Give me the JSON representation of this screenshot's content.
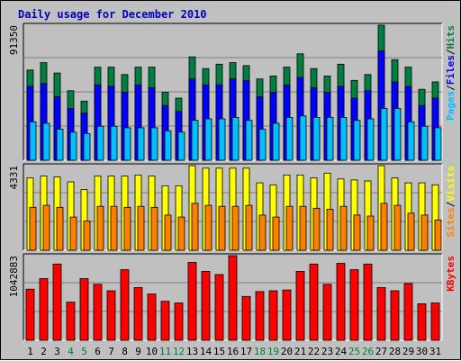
{
  "title": "Daily usage for December 2010",
  "colors": {
    "hits": "#008040",
    "files": "#0000ff",
    "pages": "#00c0ff",
    "visits": "#ffff00",
    "sites": "#ff8000",
    "kbytes": "#ff0000",
    "title": "#0000c0",
    "weekday": "#000000",
    "weekend": "#008040",
    "panel_bg": "#c0c0c0",
    "grid": "#808080"
  },
  "legend": {
    "top": [
      {
        "text": "Pages",
        "color": "#00c0ff"
      },
      {
        "text": "/",
        "color": "#000000"
      },
      {
        "text": "Files",
        "color": "#0000ff"
      },
      {
        "text": "/",
        "color": "#000000"
      },
      {
        "text": "Hits",
        "color": "#008040"
      }
    ],
    "middle": [
      {
        "text": "Sites",
        "color": "#ff8000"
      },
      {
        "text": "/",
        "color": "#000000"
      },
      {
        "text": "Visits",
        "color": "#ffff00"
      }
    ],
    "bottom": [
      {
        "text": "KBytes",
        "color": "#ff0000"
      }
    ]
  },
  "chart_data": [
    {
      "type": "bar",
      "panel": "top",
      "y_max_label": "91350",
      "ylim": [
        0,
        91350
      ],
      "categories": [
        "1",
        "2",
        "3",
        "4",
        "5",
        "6",
        "7",
        "8",
        "9",
        "10",
        "11",
        "12",
        "13",
        "14",
        "15",
        "16",
        "17",
        "18",
        "19",
        "20",
        "21",
        "22",
        "23",
        "24",
        "25",
        "26",
        "27",
        "28",
        "29",
        "30",
        "31"
      ],
      "weekend_days": [
        "4",
        "5",
        "11",
        "12",
        "18",
        "19",
        "25",
        "26"
      ],
      "series": [
        {
          "name": "Hits",
          "values": [
            61000,
            66000,
            59000,
            47000,
            40000,
            63000,
            63000,
            58000,
            63000,
            63000,
            46000,
            42000,
            70000,
            62000,
            65000,
            66000,
            64000,
            55000,
            57000,
            63000,
            72000,
            62000,
            57000,
            65000,
            54000,
            58000,
            91350,
            68000,
            63000,
            48000,
            53000
          ]
        },
        {
          "name": "Files",
          "values": [
            50000,
            52000,
            43000,
            35000,
            32000,
            51000,
            50000,
            46000,
            51000,
            49000,
            37000,
            33000,
            55000,
            51000,
            51000,
            55000,
            54000,
            43000,
            46000,
            51000,
            56000,
            49000,
            46000,
            50000,
            42000,
            47000,
            74000,
            53000,
            50000,
            37000,
            42000
          ]
        },
        {
          "name": "Pages",
          "values": [
            26000,
            25000,
            21000,
            19000,
            18000,
            23000,
            23000,
            22000,
            22000,
            22000,
            20000,
            19000,
            27000,
            28000,
            28000,
            29000,
            27000,
            21000,
            25000,
            29000,
            30000,
            29000,
            29000,
            29000,
            27000,
            28000,
            35000,
            35000,
            26000,
            23000,
            22000
          ]
        }
      ]
    },
    {
      "type": "bar",
      "panel": "middle",
      "y_max_label": "4331",
      "ylim": [
        0,
        4331
      ],
      "categories": [
        "1",
        "2",
        "3",
        "4",
        "5",
        "6",
        "7",
        "8",
        "9",
        "10",
        "11",
        "12",
        "13",
        "14",
        "15",
        "16",
        "17",
        "18",
        "19",
        "20",
        "21",
        "22",
        "23",
        "24",
        "25",
        "26",
        "27",
        "28",
        "29",
        "30",
        "31"
      ],
      "weekend_days": [
        "4",
        "5",
        "11",
        "12",
        "18",
        "19",
        "25",
        "26"
      ],
      "series": [
        {
          "name": "Visits",
          "values": [
            3700,
            3800,
            3750,
            3500,
            3100,
            3800,
            3800,
            3800,
            3850,
            3800,
            3300,
            3300,
            4331,
            4200,
            4200,
            4200,
            4200,
            3450,
            3350,
            3850,
            3850,
            3700,
            3950,
            3650,
            3600,
            3550,
            4331,
            3700,
            3450,
            3450,
            3350
          ]
        },
        {
          "name": "Sites",
          "values": [
            2200,
            2300,
            2200,
            1700,
            1500,
            2250,
            2250,
            2200,
            2250,
            2200,
            1800,
            1700,
            2400,
            2300,
            2250,
            2250,
            2300,
            1800,
            1700,
            2250,
            2250,
            2150,
            2100,
            2250,
            1800,
            1750,
            2400,
            2300,
            1900,
            1800,
            1550
          ]
        }
      ]
    },
    {
      "type": "bar",
      "panel": "bottom",
      "y_max_label": "1042883",
      "ylim": [
        0,
        1042883
      ],
      "categories": [
        "1",
        "2",
        "3",
        "4",
        "5",
        "6",
        "7",
        "8",
        "9",
        "10",
        "11",
        "12",
        "13",
        "14",
        "15",
        "16",
        "17",
        "18",
        "19",
        "20",
        "21",
        "22",
        "23",
        "24",
        "25",
        "26",
        "27",
        "28",
        "29",
        "30",
        "31"
      ],
      "weekend_days": [
        "4",
        "5",
        "11",
        "12",
        "18",
        "19",
        "25",
        "26"
      ],
      "series": [
        {
          "name": "KBytes",
          "values": [
            630000,
            760000,
            940000,
            470000,
            760000,
            690000,
            610000,
            870000,
            650000,
            570000,
            480000,
            460000,
            960000,
            850000,
            810000,
            1042883,
            540000,
            600000,
            610000,
            620000,
            850000,
            940000,
            690000,
            950000,
            870000,
            940000,
            650000,
            610000,
            700000,
            450000,
            460000
          ]
        }
      ]
    }
  ]
}
